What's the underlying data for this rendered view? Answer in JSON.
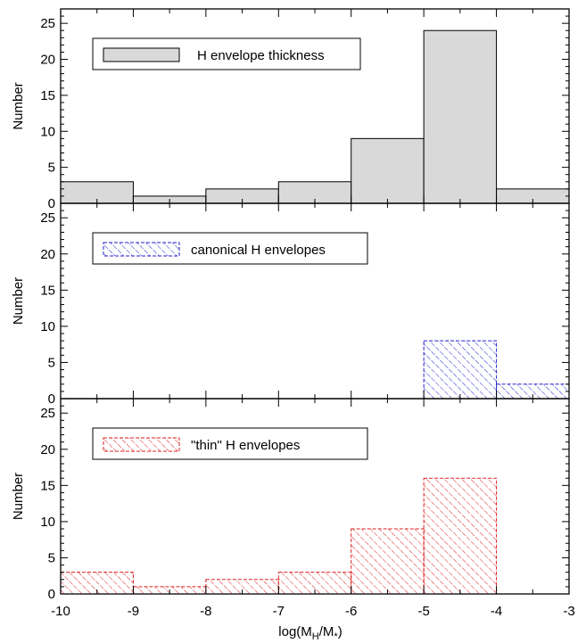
{
  "chart_data": {
    "type": "bar",
    "x_edges": [
      -10,
      -9,
      -8,
      -7,
      -6,
      -5,
      -4,
      -3
    ],
    "xlim": [
      -10,
      -3
    ],
    "ylim": [
      0,
      27
    ],
    "x_ticks": [
      "-10",
      "-9",
      "-8",
      "-7",
      "-6",
      "-5",
      "-4",
      "-3"
    ],
    "y_ticks": [
      "0",
      "5",
      "10",
      "15",
      "20",
      "25"
    ],
    "xlabel": "log(M",
    "xlabel_sub1": "H",
    "xlabel_mid": "/M",
    "xlabel_sub2": "*",
    "xlabel_end": ")",
    "panels": [
      {
        "ylabel": "Number",
        "series": [
          {
            "name": "H envelope thickness",
            "values": [
              3,
              1,
              2,
              3,
              9,
              24,
              2
            ]
          }
        ],
        "fill": "#d9d9d9",
        "stroke": "#000000",
        "hatch": false
      },
      {
        "ylabel": "Number",
        "series": [
          {
            "name": "canonical H envelopes",
            "values": [
              0,
              0,
              0,
              0,
              0,
              8,
              2
            ]
          }
        ],
        "fill": "none",
        "stroke": "#2222cc",
        "hatch": true
      },
      {
        "ylabel": "Number",
        "series": [
          {
            "name": "\"thin\" H envelopes",
            "values": [
              3,
              1,
              2,
              3,
              9,
              16,
              0
            ]
          }
        ],
        "fill": "none",
        "stroke": "#dd2222",
        "hatch": true
      }
    ]
  }
}
